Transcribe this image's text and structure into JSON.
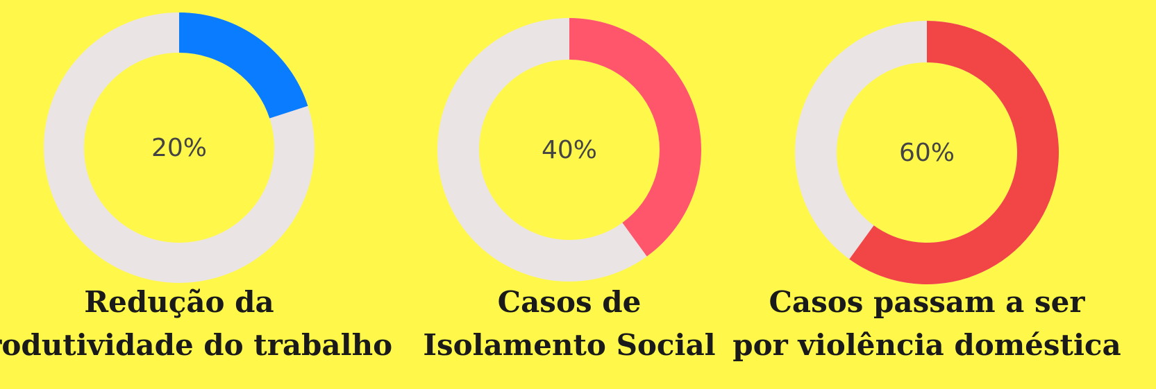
{
  "chart_data": [
    {
      "type": "donut",
      "values": [
        20
      ],
      "value_labels": [
        "20%"
      ],
      "color": "#0a7cff",
      "track_color": "#ebe4e4",
      "ylim": [
        0,
        100
      ],
      "title": [
        "Redução da",
        "produtividade do trabalho"
      ]
    },
    {
      "type": "donut",
      "values": [
        40
      ],
      "value_labels": [
        "40%"
      ],
      "color": "#ff566c",
      "track_color": "#ebe4e4",
      "ylim": [
        0,
        100
      ],
      "title": [
        "Casos de",
        "Isolamento Social"
      ]
    },
    {
      "type": "donut",
      "values": [
        60
      ],
      "value_labels": [
        "60%"
      ],
      "color": "#f24646",
      "track_color": "#ebe4e4",
      "ylim": [
        0,
        100
      ],
      "title": [
        "Casos passam a ser",
        "por violência doméstica"
      ]
    }
  ]
}
